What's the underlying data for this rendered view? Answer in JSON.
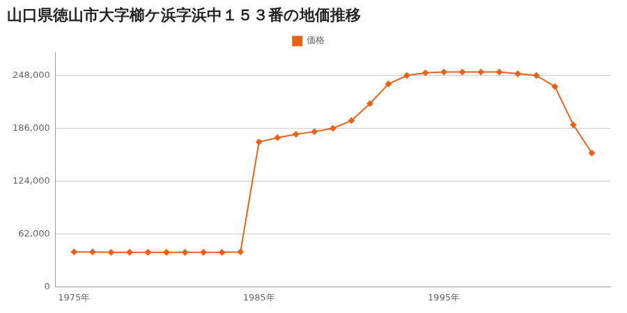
{
  "chart_data": {
    "type": "line",
    "title": "山口県徳山市大字櫛ケ浜字浜中１５３番の地価推移",
    "x": [
      1975,
      1976,
      1977,
      1978,
      1979,
      1980,
      1981,
      1982,
      1983,
      1984,
      1985,
      1986,
      1987,
      1988,
      1989,
      1990,
      1991,
      1992,
      1993,
      1994,
      1995,
      1996,
      1997,
      1998,
      1999,
      2000,
      2001,
      2002,
      2003
    ],
    "series": [
      {
        "name": "価格",
        "color": "#E8621A",
        "marker": "diamond",
        "values": [
          41000,
          41000,
          40500,
          40500,
          40500,
          40500,
          40500,
          40500,
          40500,
          41000,
          170000,
          175000,
          179000,
          182000,
          186000,
          195000,
          215000,
          238000,
          248000,
          251000,
          252000,
          252000,
          252000,
          252000,
          250000,
          248000,
          235000,
          190000,
          157000
        ]
      }
    ],
    "xlim": [
      1974,
      2004
    ],
    "xticks": [
      {
        "value": 1975,
        "label": "1975年"
      },
      {
        "value": 1985,
        "label": "1985年"
      },
      {
        "value": 1995,
        "label": "1995年"
      }
    ],
    "ylim": [
      0,
      275000
    ],
    "yticks": [
      0,
      {
        "value": 62000,
        "label": "62,000"
      },
      {
        "value": 124000,
        "label": "124,000"
      },
      {
        "value": 186000,
        "label": "186,000"
      },
      {
        "value": 248000,
        "label": "248,000"
      }
    ],
    "grid": "y",
    "legend": "top"
  }
}
